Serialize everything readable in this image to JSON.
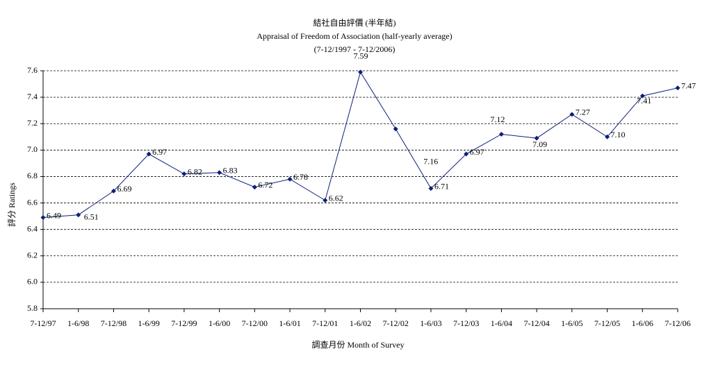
{
  "chart_data": {
    "type": "line",
    "title": "結社自由評價 (半年結)",
    "subtitle": "Appraisal of Freedom of Association (half-yearly average)",
    "period": "(7-12/1997 - 7-12/2006)",
    "y_label": "評分 Ratings",
    "x_label": "調查月份 Month of Survey",
    "categories": [
      "7-12/97",
      "1-6/98",
      "7-12/98",
      "1-6/99",
      "7-12/99",
      "1-6/00",
      "7-12/00",
      "1-6/01",
      "7-12/01",
      "1-6/02",
      "7-12/02",
      "1-6/03",
      "7-12/03",
      "1-6/04",
      "7-12/04",
      "1-6/05",
      "7-12/05",
      "1-6/06",
      "7-12/06"
    ],
    "series": [
      {
        "name": "Ratings",
        "color": "#0a1f7a",
        "values": [
          6.49,
          6.51,
          6.69,
          6.97,
          6.82,
          6.83,
          6.72,
          6.78,
          6.62,
          7.59,
          7.16,
          6.71,
          6.97,
          7.12,
          7.09,
          7.27,
          7.1,
          7.41,
          7.47
        ],
        "value_labels": [
          "6.49",
          "6.51",
          "6.69",
          "6.97",
          "6.82",
          "6.83",
          "6.72",
          "6.78",
          "6.62",
          "7.59",
          "7.16",
          "6.71",
          "6.97",
          "7.12",
          "7.09",
          "7.27",
          "7.10",
          "7.41",
          "7.47"
        ]
      }
    ],
    "ylim": [
      5.8,
      7.6
    ],
    "yticks": [
      5.8,
      {
        "value": 6,
        "label": "6.0"
      },
      6.2,
      6.4,
      6.6,
      6.8,
      {
        "value": 7,
        "label": "7.0"
      },
      7.2,
      7.4,
      7.6
    ],
    "grid": true
  }
}
